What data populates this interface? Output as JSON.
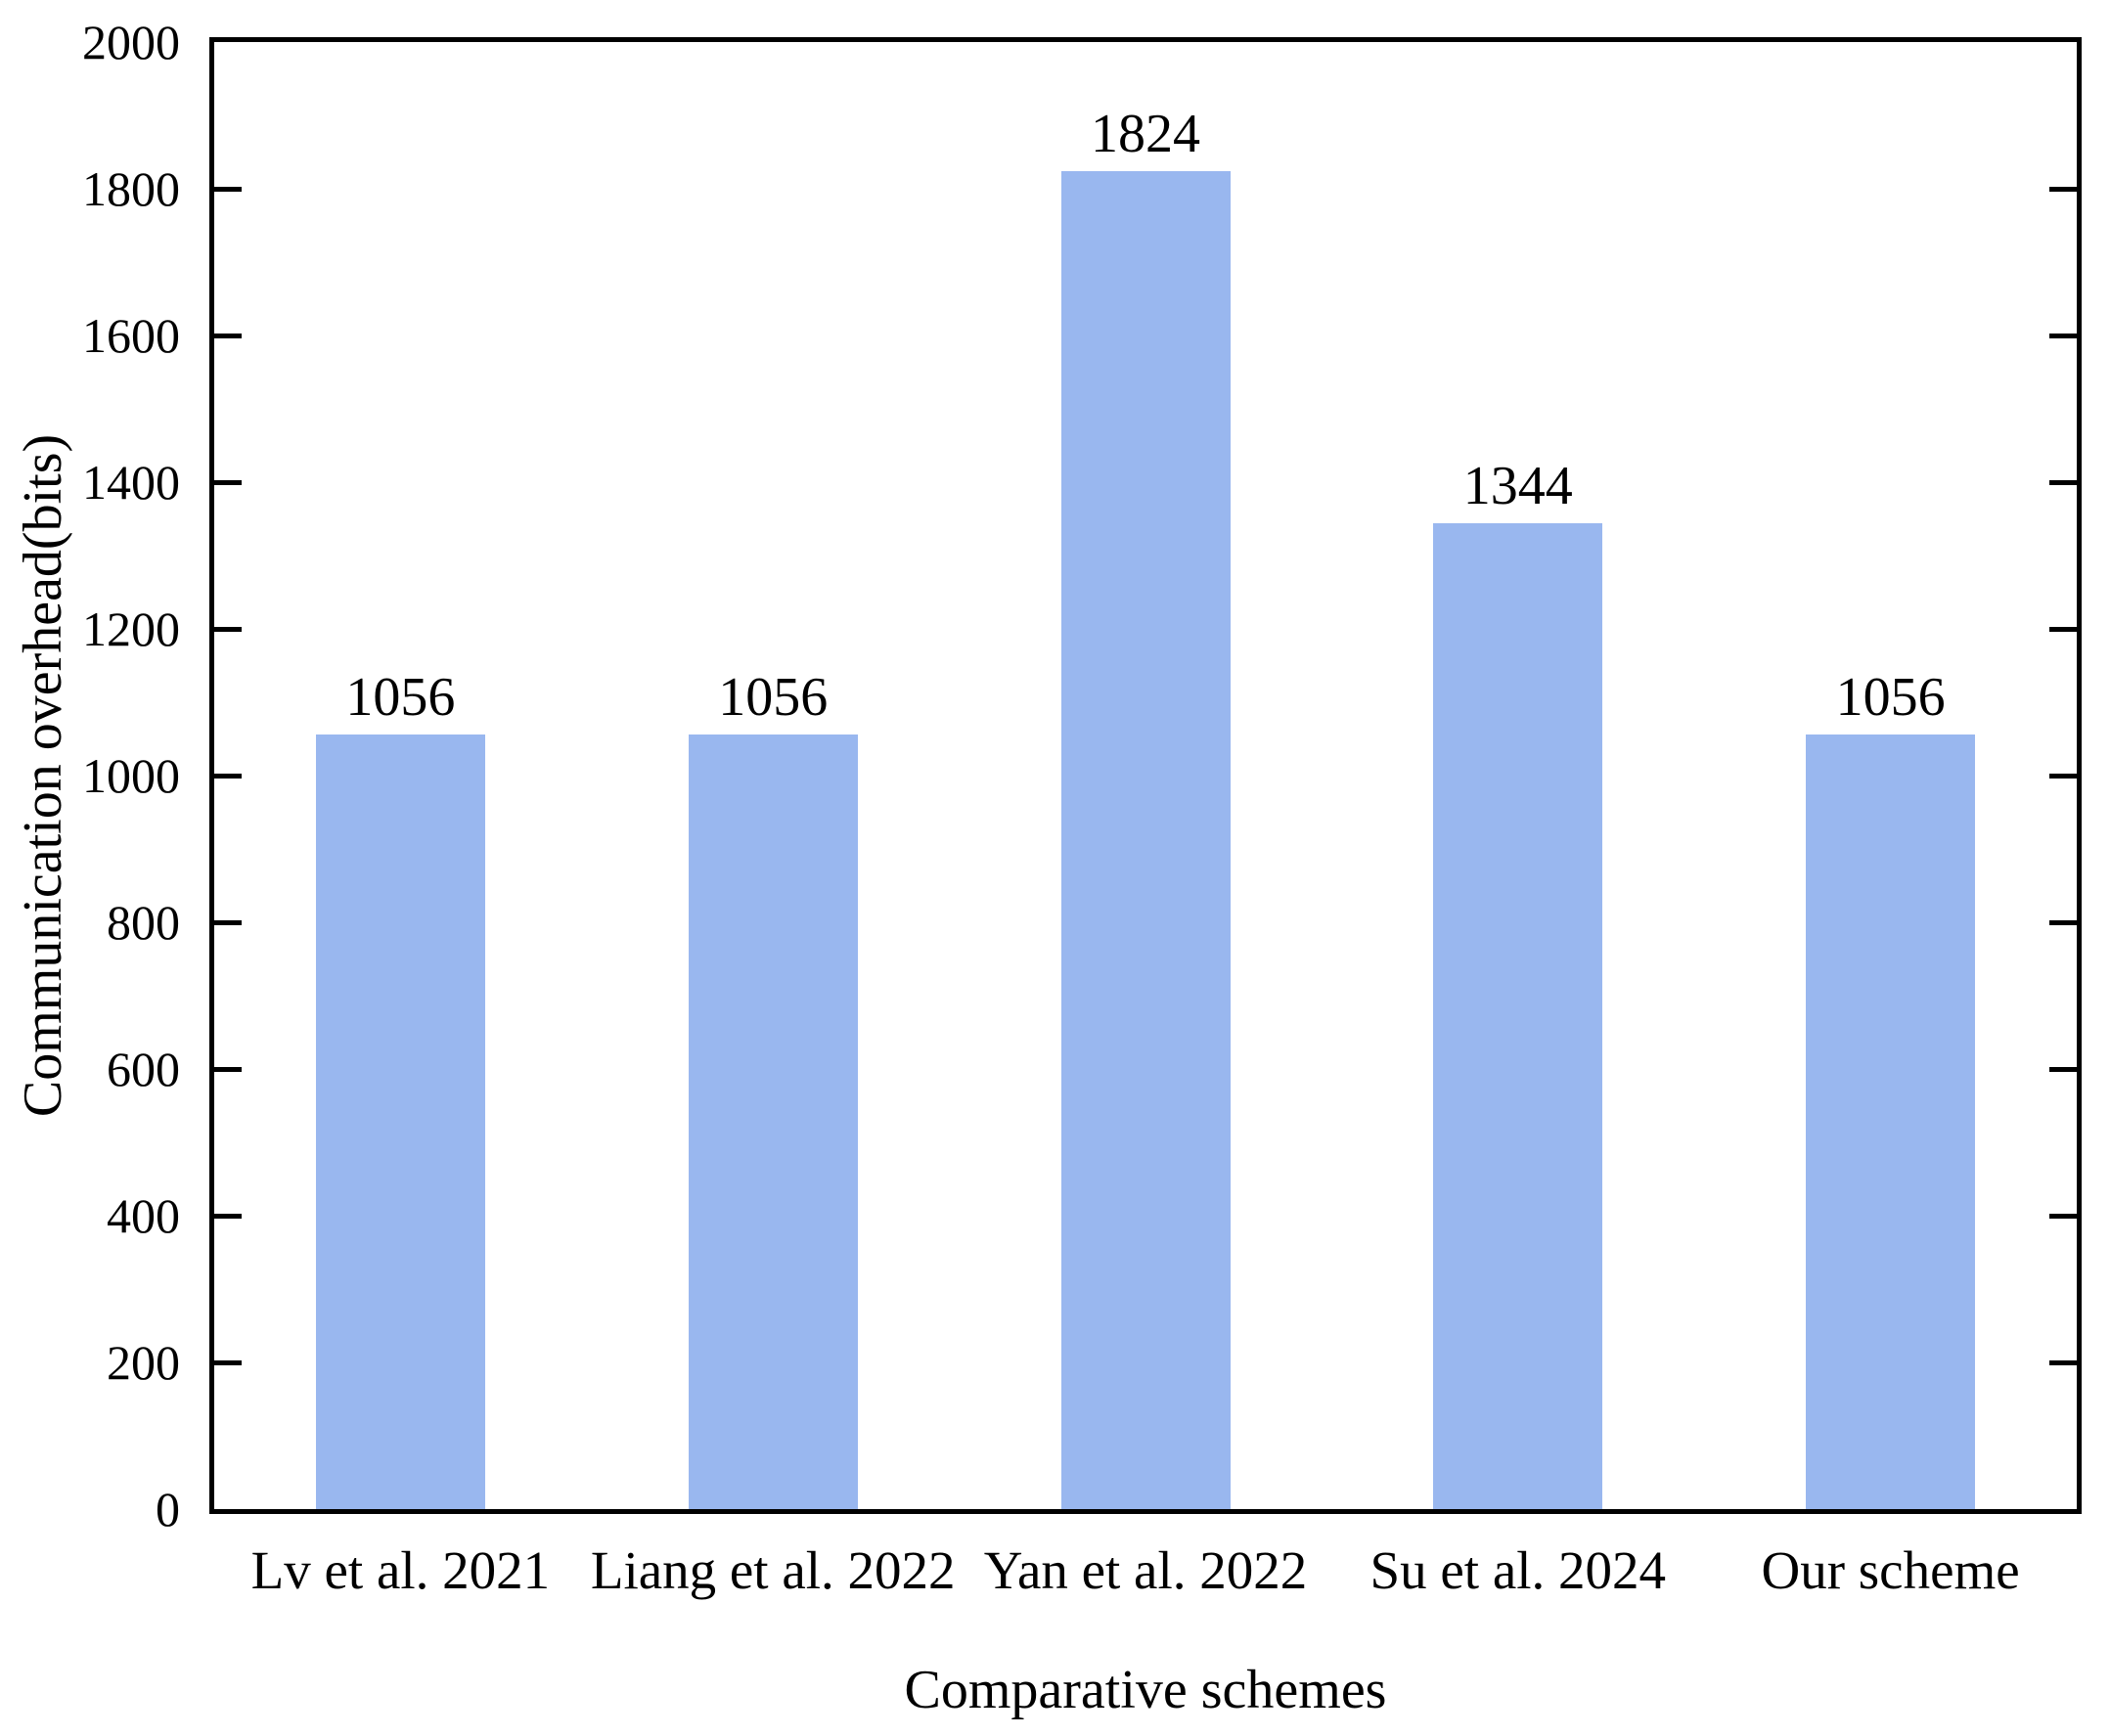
{
  "chart_data": {
    "type": "bar",
    "title": "",
    "categories": [
      "Lv et al. 2021",
      "Liang et al. 2022",
      "Yan et al. 2022",
      "Su et al. 2024",
      "Our scheme"
    ],
    "values": [
      1056,
      1056,
      1824,
      1344,
      1056
    ],
    "value_labels": [
      "1056",
      "1056",
      "1824",
      "1344",
      "1056"
    ],
    "xlabel": "Comparative schemes",
    "ylabel": "Communication overhead(bits)",
    "ylim": [
      0,
      2000
    ],
    "yticks": [
      0,
      200,
      400,
      600,
      800,
      1000,
      1200,
      1400,
      1600,
      1800,
      2000
    ],
    "grid": false,
    "legend_position": "none",
    "bar_color": "#99b7ef",
    "axis_color": "#000000",
    "text_color": "#000000",
    "background_color": "#ffffff"
  }
}
